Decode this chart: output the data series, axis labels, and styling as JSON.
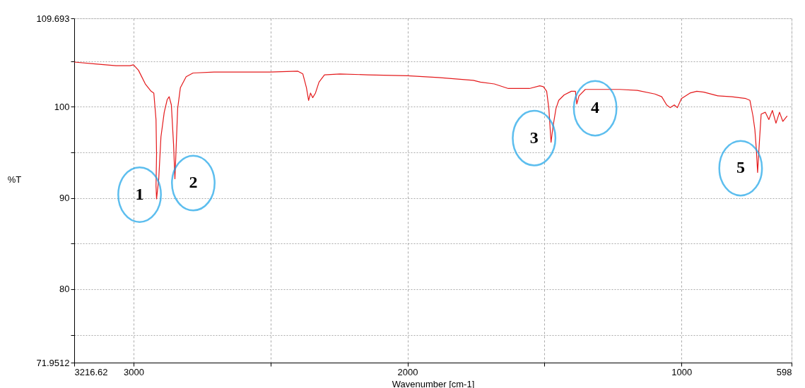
{
  "chart_data": {
    "type": "line",
    "xlabel": "Wavenumber [cm-1]",
    "ylabel": "%T",
    "xlim": [
      3216.62,
      598
    ],
    "ylim": [
      71.9512,
      109.693
    ],
    "xticks": [
      3216.62,
      3000,
      {
        "value": 2500,
        "label": null
      },
      2000,
      {
        "value": 1500,
        "label": null
      },
      1000,
      598
    ],
    "yticks": [
      71.9512,
      {
        "value": 75,
        "label": null
      },
      80,
      {
        "value": 85,
        "label": null
      },
      90,
      {
        "value": 95,
        "label": null
      },
      100,
      {
        "value": 105,
        "label": null
      },
      109.693
    ],
    "grid": true,
    "marker": "none",
    "line_style": "solid",
    "series": [
      {
        "color": "#e41a1c",
        "x": [
          3216,
          3140,
          3064,
          3013,
          3000,
          2982,
          2957,
          2936,
          2926,
          2918,
          2916,
          2918,
          2916,
          2908,
          2900,
          2888,
          2877,
          2870,
          2862,
          2854,
          2849,
          2844,
          2839,
          2829,
          2808,
          2783,
          2706,
          2604,
          2502,
          2400,
          2382,
          2369,
          2361,
          2354,
          2346,
          2336,
          2323,
          2303,
          2247,
          2145,
          2000,
          1888,
          1760,
          1734,
          1683,
          1632,
          1555,
          1517,
          1504,
          1492,
          1484,
          1476,
          1469,
          1458,
          1448,
          1428,
          1402,
          1387,
          1382,
          1374,
          1351,
          1300,
          1225,
          1161,
          1097,
          1072,
          1054,
          1041,
          1026,
          1015,
          1000,
          969,
          944,
          918,
          867,
          816,
          765,
          750,
          739,
          732,
          727,
          722,
          716,
          709,
          694,
          681,
          668,
          655,
          642,
          630,
          614
        ],
        "values": [
          104.9,
          104.7,
          104.5,
          104.5,
          104.6,
          104.0,
          102.5,
          101.7,
          101.5,
          98.6,
          94.8,
          91.3,
          89.9,
          92.1,
          96.7,
          99.4,
          100.8,
          101.1,
          100.2,
          95.9,
          92.1,
          95.9,
          99.8,
          102.1,
          103.3,
          103.7,
          103.8,
          103.8,
          103.8,
          103.9,
          103.6,
          102.1,
          100.7,
          101.5,
          101.0,
          101.5,
          102.7,
          103.5,
          103.6,
          103.5,
          103.4,
          103.2,
          102.9,
          102.7,
          102.5,
          102.0,
          102.0,
          102.3,
          102.2,
          101.7,
          99.8,
          96.1,
          97.8,
          99.8,
          100.7,
          101.3,
          101.7,
          101.7,
          100.3,
          101.2,
          101.9,
          101.9,
          101.9,
          101.8,
          101.4,
          101.1,
          100.2,
          99.9,
          100.2,
          99.9,
          100.9,
          101.5,
          101.7,
          101.6,
          101.2,
          101.1,
          100.9,
          100.7,
          99.0,
          97.5,
          95.5,
          92.8,
          95.9,
          99.2,
          99.4,
          98.6,
          99.6,
          98.2,
          99.4,
          98.4,
          99.0
        ]
      }
    ],
    "annotations": [
      {
        "text": "1",
        "x": 2916,
        "y": 89.9
      },
      {
        "text": "2",
        "x": 2849,
        "y": 92.1
      },
      {
        "text": "3",
        "x": 1476,
        "y": 96.1
      },
      {
        "text": "4",
        "x": 1382,
        "y": 100.3
      },
      {
        "text": "5",
        "x": 722,
        "y": 92.8
      }
    ]
  }
}
